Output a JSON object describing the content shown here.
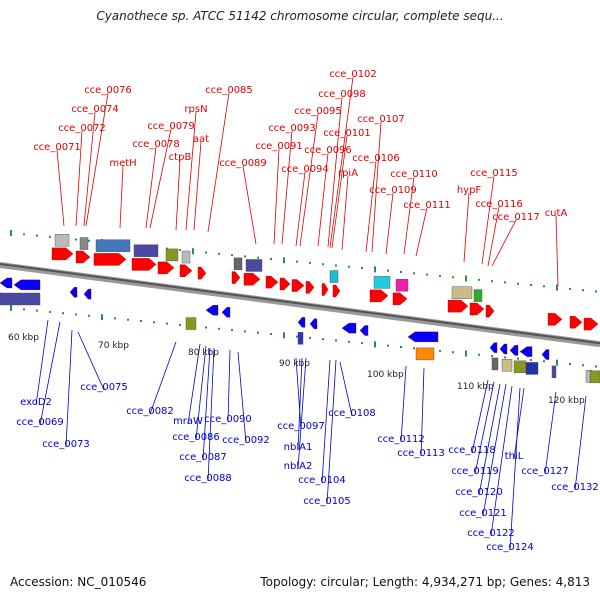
{
  "title": "Cyanothece sp. ATCC 51142 chromosome circular, complete sequ...",
  "footer": {
    "accession": "Accession: NC_010546",
    "summary": "Topology: circular; Length: 4,934,271 bp; Genes: 4,813"
  },
  "colors": {
    "forward_label": "#dd0000",
    "reverse_label": "#0000cc",
    "forward_gene": "#ff0000",
    "reverse_gene": "#0000ff",
    "backbone": "#777777",
    "tick": "#2e8b57"
  },
  "scale": [
    "60 kbp",
    "70 kbp",
    "80 kbp",
    "90 kbp",
    "100 kbp",
    "110 kbp",
    "120 kbp"
  ],
  "top_labels": [
    "cce_0076",
    "cce_0074",
    "cce_0072",
    "cce_0071",
    "metH",
    "cce_0079",
    "cce_0078",
    "rpsN",
    "ctpB",
    "aat",
    "cce_0085",
    "cce_0093",
    "cce_0091",
    "cce_0089",
    "cce_0095",
    "cce_0094",
    "cce_0096",
    "cce_0098",
    "cce_0102",
    "cce_0101",
    "rpiA",
    "cce_0106",
    "cce_0107",
    "cce_0109",
    "cce_0110",
    "cce_0111",
    "hypF",
    "cce_0115",
    "cce_0116",
    "cce_0117",
    "cutA"
  ],
  "bottom_labels": [
    "exoD2",
    "cce_0069",
    "cce_0073",
    "cce_0075",
    "cce_0082",
    "mraW",
    "cce_0086",
    "cce_0087",
    "cce_0088",
    "cce_0090",
    "cce_0092",
    "cce_0097",
    "nblA1",
    "nblA2",
    "cce_0104",
    "cce_0105",
    "cce_0108",
    "cce_0112",
    "cce_0113",
    "cce_0118",
    "cce_0119",
    "cce_0120",
    "cce_0121",
    "cce_0122",
    "cce_0124",
    "thiL",
    "cce_0127",
    "cce_0132"
  ]
}
